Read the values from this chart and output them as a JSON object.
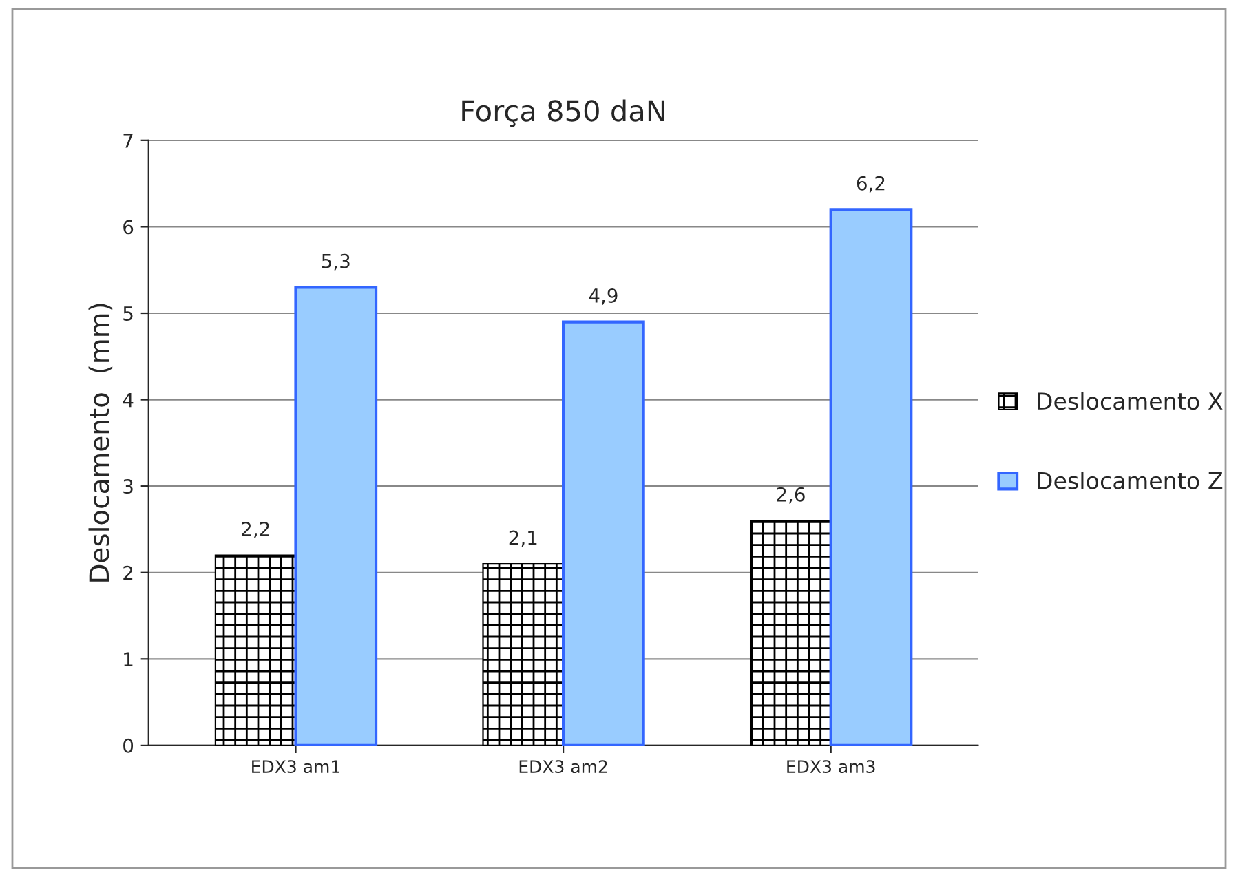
{
  "chart_data": {
    "type": "bar",
    "title": "Força 850 daN",
    "ylabel": "Deslocamento  (mm)",
    "categories": [
      "EDX3 am1",
      "EDX3 am2",
      "EDX3 am3"
    ],
    "series": [
      {
        "name": "Deslocamento X",
        "color": "#000000",
        "values": [
          2.2,
          2.1,
          2.6
        ],
        "value_labels": [
          "2,2",
          "2,1",
          "2,6"
        ]
      },
      {
        "name": "Deslocamento Z",
        "color": "#99ccff",
        "values": [
          5.3,
          4.9,
          6.2
        ],
        "value_labels": [
          "5,3",
          "4,9",
          "6,2"
        ]
      }
    ],
    "ylim": [
      0,
      7
    ],
    "yticks": [
      0,
      1,
      2,
      3,
      4,
      5,
      6,
      7
    ],
    "grid": "y",
    "legend": "right"
  }
}
